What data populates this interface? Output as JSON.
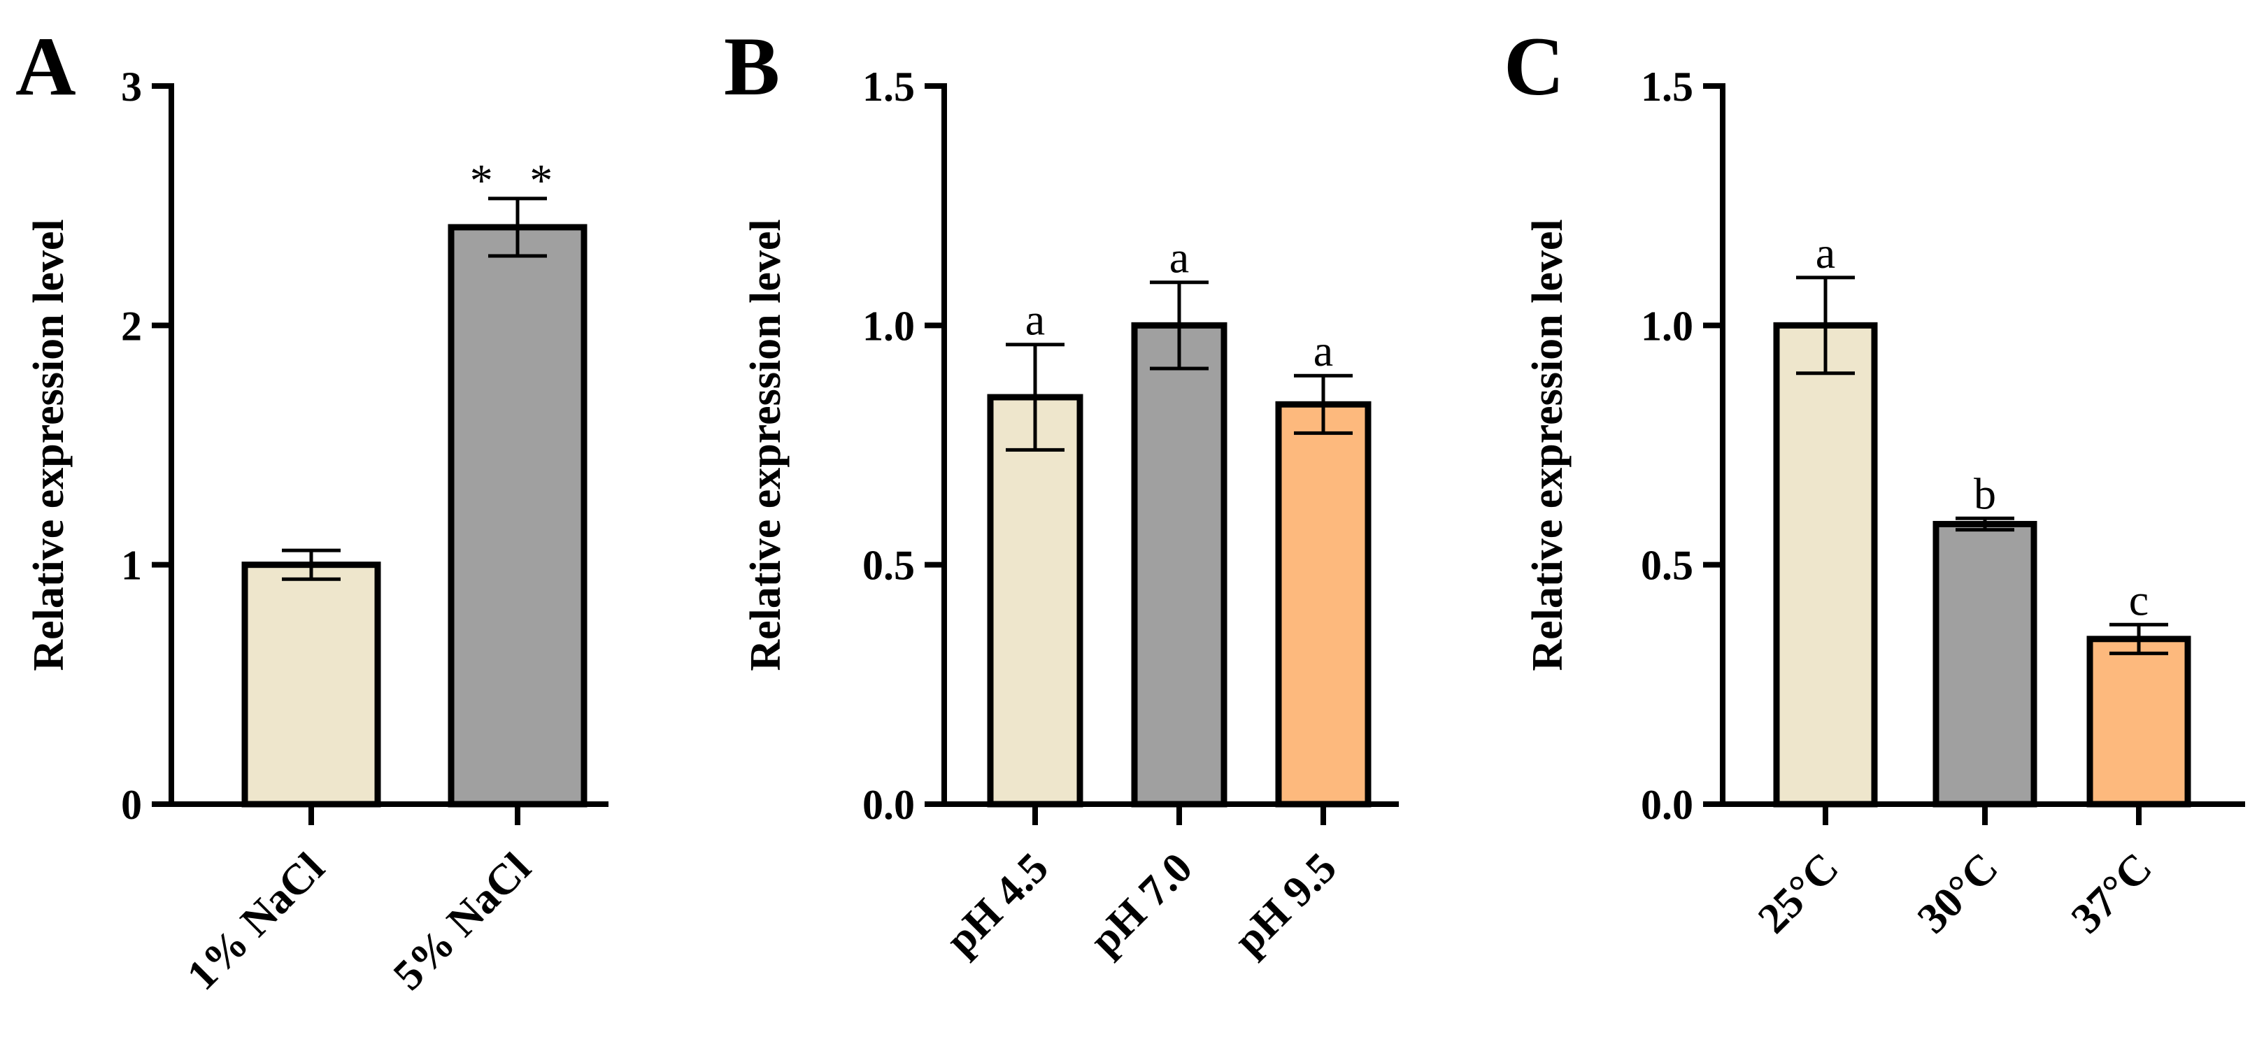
{
  "colors": {
    "cream": "#EEE6CC",
    "gray": "#A0A0A0",
    "orange": "#FDB97D",
    "axis": "#000000"
  },
  "chart_data": [
    {
      "panel": "A",
      "type": "bar",
      "ylabel": "Relative expression level",
      "ylim": [
        0,
        3
      ],
      "yticks": [
        0,
        1,
        2,
        3
      ],
      "ytick_labels": [
        "0",
        "1",
        "2",
        "3"
      ],
      "categories": [
        "1% NaCl",
        "5% NaCl"
      ],
      "values": [
        1.0,
        2.41
      ],
      "errors": [
        0.06,
        0.12
      ],
      "annotations": [
        "",
        "* *"
      ],
      "colors": [
        "cream",
        "gray"
      ]
    },
    {
      "panel": "B",
      "type": "bar",
      "ylabel": "Relative expression level",
      "ylim": [
        0,
        1.5
      ],
      "yticks": [
        0,
        0.5,
        1.0,
        1.5
      ],
      "ytick_labels": [
        "0.0",
        "0.5",
        "1.0",
        "1.5"
      ],
      "categories": [
        "pH 4.5",
        "pH 7.0",
        "pH 9.5"
      ],
      "values": [
        0.85,
        1.0,
        0.835
      ],
      "errors": [
        0.11,
        0.09,
        0.06
      ],
      "annotations": [
        "a",
        "a",
        "a"
      ],
      "colors": [
        "cream",
        "gray",
        "orange"
      ]
    },
    {
      "panel": "C",
      "type": "bar",
      "ylabel": "Relative expression level",
      "ylim": [
        0,
        1.5
      ],
      "yticks": [
        0,
        0.5,
        1.0,
        1.5
      ],
      "ytick_labels": [
        "0.0",
        "0.5",
        "1.0",
        "1.5"
      ],
      "categories": [
        "25°C",
        "30°C",
        "37°C"
      ],
      "values": [
        1.0,
        0.585,
        0.345
      ],
      "errors": [
        0.1,
        0.012,
        0.03
      ],
      "annotations": [
        "a",
        "b",
        "c"
      ],
      "colors": [
        "cream",
        "gray",
        "orange"
      ]
    }
  ]
}
